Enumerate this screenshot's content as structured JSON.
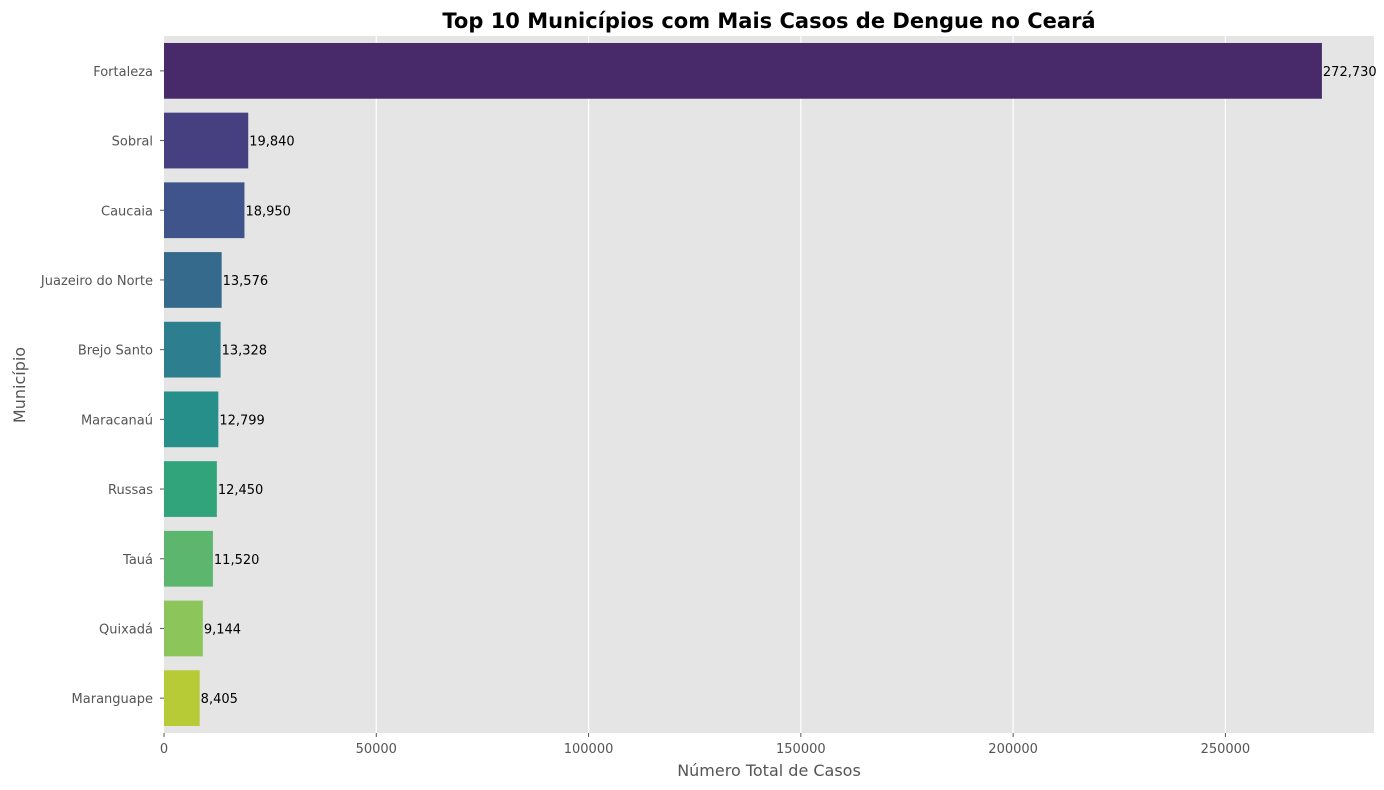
{
  "chart_data": {
    "type": "bar",
    "orientation": "horizontal",
    "title": "Top 10 Municípios com Mais Casos de Dengue no Ceará",
    "xlabel": "Número Total de Casos",
    "ylabel": "Município",
    "xlim": [
      0,
      285000
    ],
    "xticks": [
      0,
      50000,
      100000,
      150000,
      200000,
      250000
    ],
    "xtick_labels": [
      "0",
      "50000",
      "100000",
      "150000",
      "200000",
      "250000"
    ],
    "grid": true,
    "categories": [
      "Fortaleza",
      "Sobral",
      "Caucaia",
      "Juazeiro do Norte",
      "Brejo Santo",
      "Maracanaú",
      "Russas",
      "Tauá",
      "Quixadá",
      "Maranguape"
    ],
    "values": [
      272730,
      19840,
      18950,
      13576,
      13328,
      12799,
      12450,
      11520,
      9144,
      8405
    ],
    "value_labels": [
      "272,730",
      "19,840",
      "18,950",
      "13,576",
      "13,328",
      "12,799",
      "12,450",
      "11,520",
      "9,144",
      "8,405"
    ],
    "colors": [
      "#482a6b",
      "#463f80",
      "#3f548a",
      "#356a8d",
      "#2d7e8e",
      "#268f8a",
      "#32a47c",
      "#5cb66e",
      "#8cc55a",
      "#b6cb35"
    ],
    "plot_background": "#e5e5e5",
    "grid_color": "#ffffff"
  }
}
